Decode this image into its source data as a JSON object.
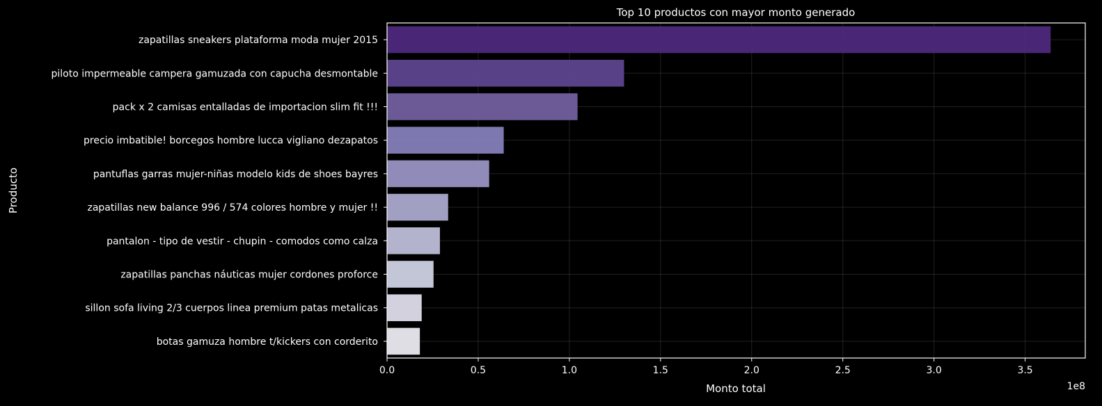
{
  "chart_data": {
    "type": "bar",
    "orientation": "horizontal",
    "title": "Top 10 productos con mayor monto generado",
    "xlabel": "Monto total",
    "ylabel": "Producto",
    "scale_note": "1e8",
    "xlim": [
      0,
      3.83
    ],
    "xticks": [
      0.0,
      0.5,
      1.0,
      1.5,
      2.0,
      2.5,
      3.0,
      3.5
    ],
    "xtick_labels": [
      "0.0",
      "0.5",
      "1.0",
      "1.5",
      "2.0",
      "2.5",
      "3.0",
      "3.5"
    ],
    "grid": true,
    "categories": [
      "zapatillas sneakers plataforma moda mujer 2015",
      "piloto impermeable campera gamuzada con capucha desmontable",
      "pack x 2 camisas entalladas de importacion slim fit !!!",
      "precio imbatible! borcegos hombre lucca vigliano dezapatos",
      "pantuflas garras mujer-niñas modelo kids de shoes bayres",
      "zapatillas new balance 996 / 574 colores hombre y mujer !!",
      "pantalon - tipo de vestir - chupin - comodos como calza",
      "zapatillas panchas náuticas mujer cordones proforce",
      "sillon sofa living 2/3 cuerpos linea premium patas metalicas",
      "botas gamuza hombre t/kickers con corderito"
    ],
    "values": [
      3.64,
      1.3,
      1.045,
      0.64,
      0.56,
      0.335,
      0.29,
      0.255,
      0.19,
      0.18
    ],
    "colors": [
      "#4f2a80",
      "#5f4691",
      "#7462a3",
      "#8883bf",
      "#9c97c8",
      "#b0aed3",
      "#c2c2de",
      "#d4d7e8",
      "#e4e3f0",
      "#f2f1f7"
    ]
  }
}
